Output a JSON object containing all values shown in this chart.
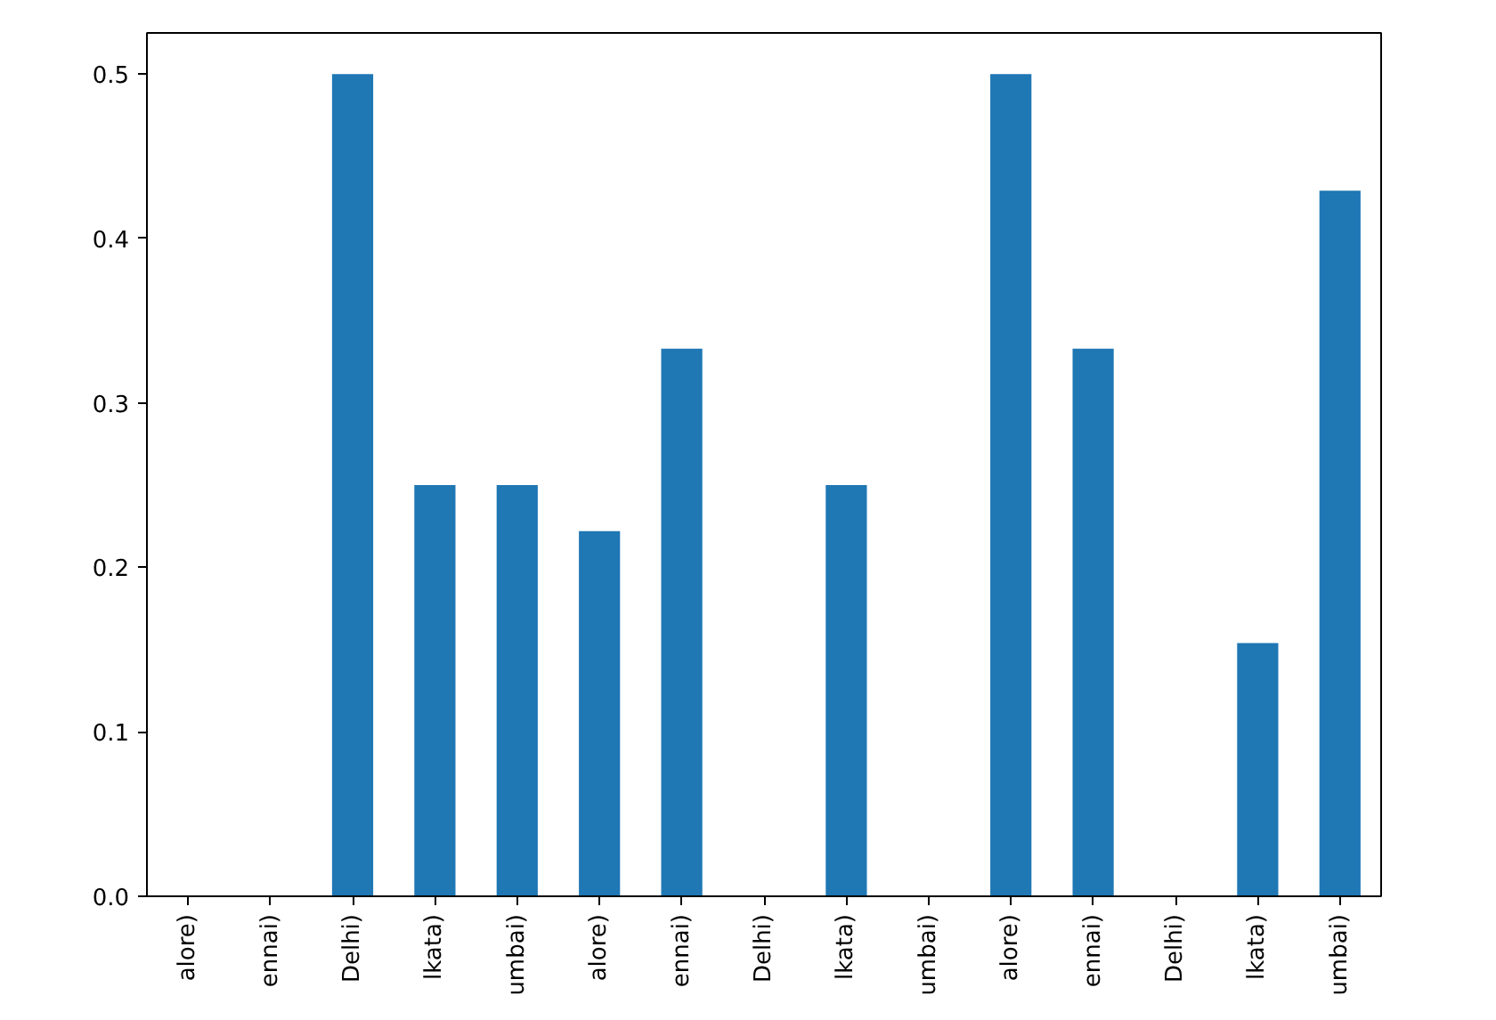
{
  "chart_data": {
    "type": "bar",
    "categories": [
      "alore)",
      "ennai)",
      "Delhi)",
      "lkata)",
      "umbai)",
      "alore)",
      "ennai)",
      "Delhi)",
      "lkata)",
      "umbai)",
      "alore)",
      "ennai)",
      "Delhi)",
      "lkata)",
      "umbai)"
    ],
    "values": [
      0,
      0,
      0.5,
      0.25,
      0.25,
      0.222,
      0.333,
      0,
      0.25,
      0,
      0.5,
      0.333,
      0,
      0.154,
      0.429
    ],
    "color": "#1f77b4",
    "ylim": [
      0,
      0.525
    ],
    "yticks": [
      {
        "value": 0,
        "label": "0.0"
      },
      0.1,
      0.2,
      0.3,
      0.4,
      0.5
    ],
    "grid": false
  }
}
